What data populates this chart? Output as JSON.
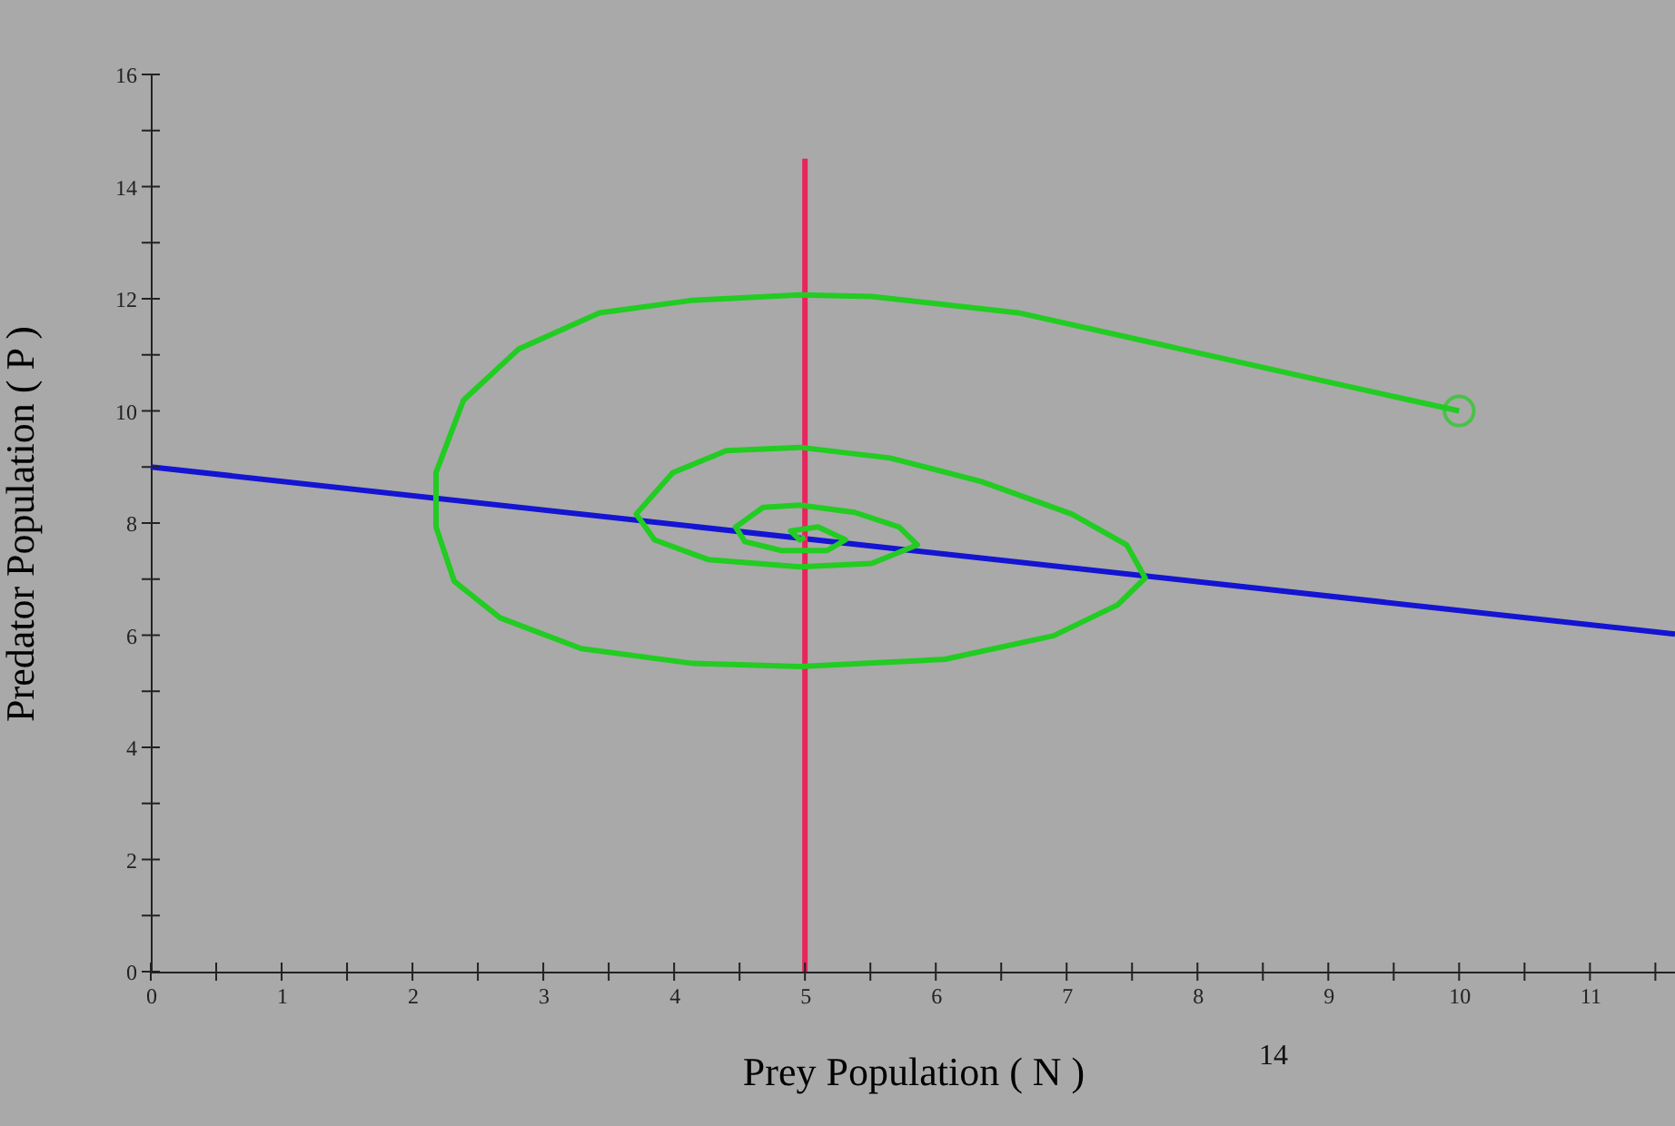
{
  "chart_data": {
    "type": "line",
    "xlabel": "Prey Population ( N )",
    "ylabel": "Predator Population ( P )",
    "xlim": [
      0,
      11.65
    ],
    "ylim": [
      0,
      16
    ],
    "xticks": [
      0,
      {
        "value": 0.5,
        "label": null
      },
      1,
      {
        "value": 1.5,
        "label": null
      },
      2,
      {
        "value": 2.5,
        "label": null
      },
      3,
      {
        "value": 3.5,
        "label": null
      },
      4,
      {
        "value": 4.5,
        "label": null
      },
      5,
      {
        "value": 5.5,
        "label": null
      },
      6,
      {
        "value": 6.5,
        "label": null
      },
      7,
      {
        "value": 7.5,
        "label": null
      },
      8,
      {
        "value": 8.5,
        "label": null
      },
      9,
      {
        "value": 9.5,
        "label": null
      },
      10,
      {
        "value": 10.5,
        "label": null
      },
      11,
      {
        "value": 11.5,
        "label": null
      }
    ],
    "yticks": [
      0,
      {
        "value": 1,
        "label": null
      },
      2,
      {
        "value": 3,
        "label": null
      },
      4,
      {
        "value": 5,
        "label": null
      },
      6,
      {
        "value": 7,
        "label": null
      },
      8,
      {
        "value": 9,
        "label": null
      },
      10,
      {
        "value": 11,
        "label": null
      },
      12,
      {
        "value": 13,
        "label": null
      },
      14,
      {
        "value": 15,
        "label": null
      },
      16
    ],
    "grid": false,
    "annotations": [
      "14"
    ],
    "series": [
      {
        "color": "#1414d2",
        "x": [
          0,
          11.65
        ],
        "values": [
          9,
          6.02
        ]
      },
      {
        "color": "#e8245c",
        "x": [
          5,
          5
        ],
        "values": [
          0,
          14.5
        ]
      },
      {
        "color": "#22cc22",
        "x": [
          10,
          8.99,
          7.88,
          6.63,
          5.51,
          4.96,
          4.13,
          3.43,
          2.81,
          2.39,
          2.18,
          2.18,
          2.32,
          2.67,
          3.29,
          4.13,
          4.96,
          6.07,
          6.9,
          7.39,
          7.6,
          7.46,
          7.04,
          6.35,
          5.65,
          4.96,
          4.4,
          3.99,
          3.71,
          3.85,
          4.26,
          4.96,
          5.51,
          5.86,
          5.72,
          5.38,
          4.96,
          4.68,
          4.47,
          4.54,
          4.82,
          5.17,
          5.31,
          5.1,
          4.89,
          4.96,
          5.0
        ],
        "values": [
          10,
          10.52,
          11.1,
          11.75,
          12.04,
          12.07,
          11.97,
          11.75,
          11.1,
          10.19,
          8.9,
          7.93,
          6.96,
          6.31,
          5.76,
          5.5,
          5.44,
          5.57,
          5.99,
          6.54,
          7.02,
          7.61,
          8.16,
          8.74,
          9.16,
          9.35,
          9.29,
          8.9,
          8.16,
          7.7,
          7.35,
          7.22,
          7.28,
          7.61,
          7.93,
          8.19,
          8.32,
          8.28,
          7.93,
          7.67,
          7.51,
          7.51,
          7.7,
          7.93,
          7.86,
          7.7,
          7.75
        ]
      },
      {
        "type": "scatter",
        "marker": "circle",
        "color": "#22cc22",
        "x": [
          10
        ],
        "values": [
          10
        ]
      }
    ]
  }
}
